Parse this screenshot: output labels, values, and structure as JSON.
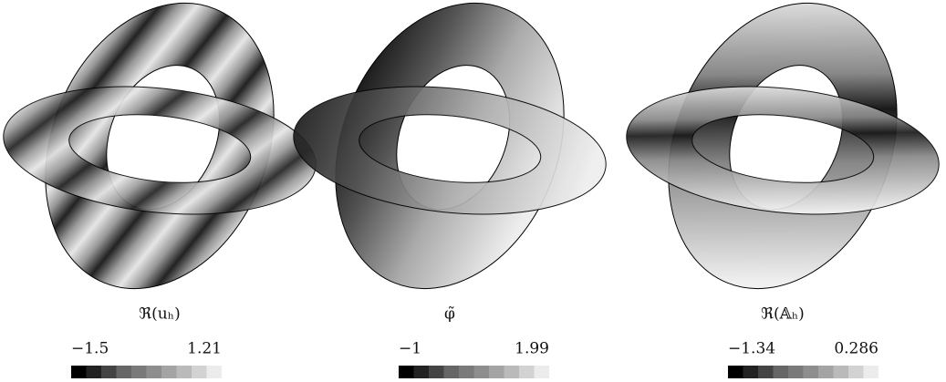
{
  "panels": [
    {
      "label": "ℜ(uₕ)",
      "colorbar": {
        "min": "−1.5",
        "max": "1.21"
      }
    },
    {
      "label": "φ̃",
      "colorbar": {
        "min": "−1",
        "max": "1.99"
      }
    },
    {
      "label": "ℜ(𝔸ₕ)",
      "colorbar": {
        "min": "−1.34",
        "max": "0.286"
      }
    }
  ]
}
